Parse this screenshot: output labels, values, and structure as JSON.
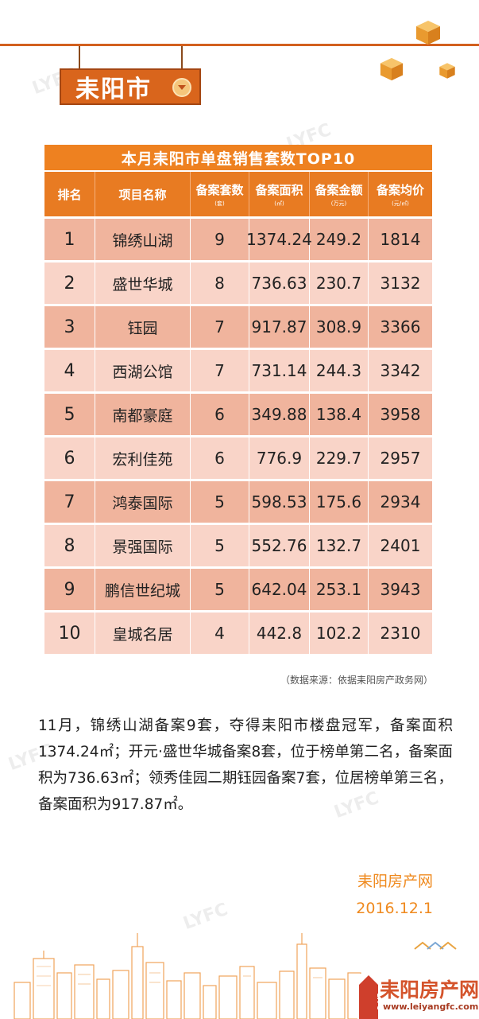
{
  "city_tag": {
    "label": "耒阳市"
  },
  "table": {
    "title": "本月耒阳市单盘销售套数TOP10",
    "headers": [
      {
        "label": "排名",
        "unit": ""
      },
      {
        "label": "项目名称",
        "unit": ""
      },
      {
        "label": "备案套数",
        "unit": "(套)"
      },
      {
        "label": "备案面积",
        "unit": "(㎡)"
      },
      {
        "label": "备案金额",
        "unit": "(万元)"
      },
      {
        "label": "备案均价",
        "unit": "(元/㎡)"
      }
    ],
    "rows": [
      [
        "1",
        "锦绣山湖",
        "9",
        "1374.24",
        "249.2",
        "1814"
      ],
      [
        "2",
        "盛世华城",
        "8",
        "736.63",
        "230.7",
        "3132"
      ],
      [
        "3",
        "钰园",
        "7",
        "917.87",
        "308.9",
        "3366"
      ],
      [
        "4",
        "西湖公馆",
        "7",
        "731.14",
        "244.3",
        "3342"
      ],
      [
        "5",
        "南都豪庭",
        "6",
        "349.88",
        "138.4",
        "3958"
      ],
      [
        "6",
        "宏利佳苑",
        "6",
        "776.9",
        "229.7",
        "2957"
      ],
      [
        "7",
        "鸿泰国际",
        "5",
        "598.53",
        "175.6",
        "2934"
      ],
      [
        "8",
        "景强国际",
        "5",
        "552.76",
        "132.7",
        "2401"
      ],
      [
        "9",
        "鹏信世纪城",
        "5",
        "642.04",
        "253.1",
        "3943"
      ],
      [
        "10",
        "皇城名居",
        "4",
        "442.8",
        "102.2",
        "2310"
      ]
    ]
  },
  "source": "（数据来源：依据耒阳房产政务网）",
  "paragraph": "11月，锦绣山湖备案9套，夺得耒阳市楼盘冠军，备案面积1374.24㎡；开元·盛世华城备案8套，位于榜单第二名，备案面积为736.63㎡；领秀佳园二期钰园备案7套，位居榜单第三名，备案面积为917.87㎡。",
  "signature": {
    "org": "耒阳房产网",
    "date": "2016.12.1"
  },
  "footer": {
    "logo_text": "耒阳房产网",
    "url": "www.leiyangfc.com",
    "emblem": "LYFC"
  },
  "colors": {
    "accent": "#ee8120",
    "row_odd": "#f0b49d",
    "row_even": "#f9d4c8",
    "signature": "#ef8a1f"
  }
}
